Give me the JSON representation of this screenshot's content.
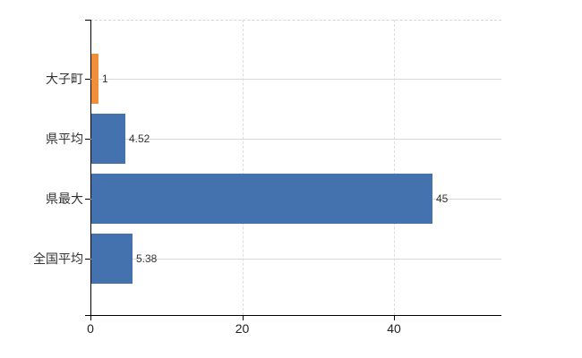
{
  "chart_data": {
    "type": "bar",
    "orientation": "horizontal",
    "title": "",
    "xlabel": "",
    "ylabel": "",
    "categories": [
      "大子町",
      "県平均",
      "県最大",
      "全国平均"
    ],
    "values": [
      1,
      4.52,
      45,
      5.38
    ],
    "value_labels": [
      "1",
      "4.52",
      "45",
      "5.38"
    ],
    "bar_colors": [
      "#ef8e3b",
      "#4372ae",
      "#4372ae",
      "#4372ae"
    ],
    "x_ticks": [
      0,
      20,
      40
    ],
    "x_tick_labels": [
      "0",
      "20",
      "40"
    ],
    "xlim": [
      0,
      54.2
    ],
    "grid": true,
    "legend": false,
    "colors": {
      "highlight_bar": "#ef8e3b",
      "default_bar": "#4372ae",
      "axis": "#000000",
      "gridline": "#d6dad6",
      "background": "#ffffff",
      "text": "#333333"
    }
  }
}
